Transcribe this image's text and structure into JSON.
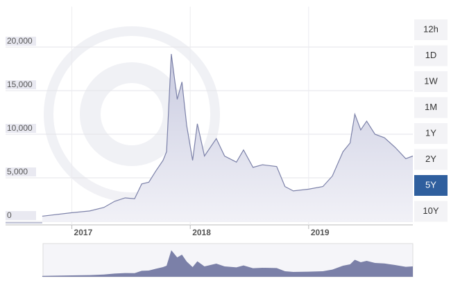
{
  "chart_data": {
    "type": "area",
    "color": "#7b80a8",
    "x": [
      2016.75,
      2017.0,
      2017.15,
      2017.27,
      2017.36,
      2017.45,
      2017.53,
      2017.59,
      2017.65,
      2017.71,
      2017.77,
      2017.8,
      2017.84,
      2017.89,
      2017.93,
      2017.97,
      2018.02,
      2018.06,
      2018.12,
      2018.22,
      2018.29,
      2018.39,
      2018.45,
      2018.53,
      2018.61,
      2018.73,
      2018.8,
      2018.87,
      2019.0,
      2019.12,
      2019.2,
      2019.29,
      2019.35,
      2019.39,
      2019.44,
      2019.49,
      2019.56,
      2019.64,
      2019.73,
      2019.82,
      2019.88
    ],
    "values": [
      600,
      1000,
      1200,
      1600,
      2300,
      2700,
      2600,
      4300,
      4500,
      5800,
      7000,
      8000,
      19200,
      14000,
      16000,
      11000,
      7000,
      11200,
      7500,
      9500,
      7500,
      6800,
      8200,
      6200,
      6500,
      6300,
      4000,
      3500,
      3700,
      4000,
      5200,
      8000,
      9000,
      12300,
      10500,
      11500,
      10000,
      9600,
      8500,
      7200,
      7500
    ],
    "xlim": [
      2016.44,
      2019.88
    ],
    "xticks": [
      2017,
      2018,
      2019
    ],
    "ylim": [
      0,
      24000
    ],
    "yticks": [
      0,
      {
        "value": 5000,
        "label": "5,000"
      },
      {
        "value": 10000,
        "label": "10,000"
      },
      {
        "value": 15000,
        "label": "15,000"
      },
      {
        "value": 20000,
        "label": "20,000"
      }
    ],
    "grid": true
  },
  "range_buttons": {
    "labels": [
      "12h",
      "1D",
      "1W",
      "1M",
      "1Y",
      "2Y",
      "5Y",
      "10Y"
    ],
    "selected_index": 6
  }
}
